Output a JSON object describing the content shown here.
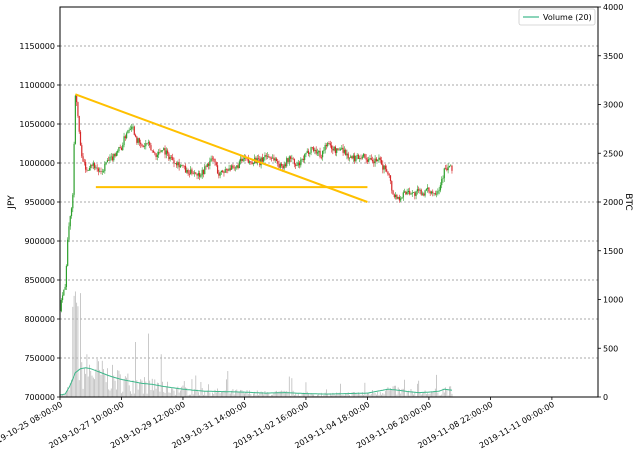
{
  "chart_data": {
    "type": "candlestick",
    "left_axis": {
      "label": "JPY",
      "range": [
        700000,
        1200000
      ],
      "ticks": [
        700000,
        750000,
        800000,
        850000,
        900000,
        950000,
        1000000,
        1050000,
        1100000,
        1150000
      ],
      "tick_labels": [
        "700000",
        "750000",
        "800000",
        "850000",
        "900000",
        "950000",
        "1000000",
        "1050000",
        "1100000",
        "1150000"
      ]
    },
    "right_axis": {
      "label": "BTC",
      "range": [
        0,
        4000
      ],
      "ticks": [
        0,
        500,
        1000,
        1500,
        2000,
        2500,
        3000,
        3500,
        4000
      ],
      "tick_labels": [
        "0",
        "500",
        "1000",
        "1500",
        "2000",
        "2500",
        "3000",
        "3500",
        "4000"
      ]
    },
    "x_axis": {
      "range_hours": [
        0,
        420
      ],
      "ticks_hours": [
        0,
        48,
        96,
        144,
        192,
        240,
        288,
        336,
        384
      ],
      "tick_labels": [
        "2019-10-25 08:00:00",
        "2019-10-27 10:00:00",
        "2019-10-29 12:00:00",
        "2019-10-31 14:00:00",
        "2019-11-02 16:00:00",
        "2019-11-04 18:00:00",
        "2019-11-06 20:00:00",
        "2019-11-08 22:00:00",
        "2019-11-11 00:00:00"
      ]
    },
    "legend": {
      "label": "Volume (20)",
      "position": "top-right",
      "color": "#3cb88a"
    },
    "grid": {
      "horizontal": true,
      "style": "dashed"
    },
    "colors": {
      "up": "#2ca02c",
      "down": "#d62728",
      "volume_bar": "#bbbbbb",
      "volume_ma": "#3cb88a",
      "trendline": "#ffc000"
    },
    "price_path": [
      [
        0,
        810000
      ],
      [
        2,
        830000
      ],
      [
        4,
        840000
      ],
      [
        6,
        900000
      ],
      [
        8,
        930000
      ],
      [
        10,
        960000
      ],
      [
        12,
        1090000
      ],
      [
        14,
        1060000
      ],
      [
        16,
        1020000
      ],
      [
        20,
        990000
      ],
      [
        24,
        1000000
      ],
      [
        28,
        995000
      ],
      [
        32,
        985000
      ],
      [
        36,
        1000000
      ],
      [
        40,
        1005000
      ],
      [
        44,
        1015000
      ],
      [
        48,
        1020000
      ],
      [
        52,
        1040000
      ],
      [
        56,
        1050000
      ],
      [
        60,
        1030000
      ],
      [
        64,
        1020000
      ],
      [
        68,
        1025000
      ],
      [
        72,
        1015000
      ],
      [
        76,
        1010000
      ],
      [
        80,
        1020000
      ],
      [
        84,
        1010000
      ],
      [
        88,
        1005000
      ],
      [
        92,
        1000000
      ],
      [
        96,
        995000
      ],
      [
        100,
        985000
      ],
      [
        104,
        990000
      ],
      [
        108,
        985000
      ],
      [
        112,
        990000
      ],
      [
        116,
        1000000
      ],
      [
        120,
        1005000
      ],
      [
        124,
        985000
      ],
      [
        128,
        990000
      ],
      [
        132,
        995000
      ],
      [
        136,
        990000
      ],
      [
        140,
        1000000
      ],
      [
        144,
        1005000
      ],
      [
        148,
        1000000
      ],
      [
        152,
        1005000
      ],
      [
        156,
        1000000
      ],
      [
        160,
        1010000
      ],
      [
        164,
        1008000
      ],
      [
        168,
        1005000
      ],
      [
        172,
        995000
      ],
      [
        176,
        1000000
      ],
      [
        180,
        1008000
      ],
      [
        184,
        995000
      ],
      [
        188,
        1000000
      ],
      [
        192,
        1010000
      ],
      [
        196,
        1020000
      ],
      [
        200,
        1015000
      ],
      [
        204,
        1010000
      ],
      [
        208,
        1025000
      ],
      [
        212,
        1020000
      ],
      [
        216,
        1015000
      ],
      [
        220,
        1020000
      ],
      [
        224,
        1010000
      ],
      [
        228,
        1005000
      ],
      [
        232,
        1008000
      ],
      [
        236,
        1010000
      ],
      [
        240,
        1005000
      ],
      [
        244,
        1000000
      ],
      [
        248,
        1005000
      ],
      [
        252,
        995000
      ],
      [
        256,
        990000
      ],
      [
        260,
        960000
      ],
      [
        264,
        955000
      ],
      [
        268,
        960000
      ],
      [
        272,
        965000
      ],
      [
        276,
        960000
      ],
      [
        280,
        963000
      ],
      [
        284,
        962000
      ],
      [
        288,
        965000
      ],
      [
        292,
        962000
      ],
      [
        296,
        968000
      ],
      [
        300,
        990000
      ],
      [
        304,
        995000
      ],
      [
        306,
        990000
      ]
    ],
    "volume_ma_path": [
      [
        0,
        20
      ],
      [
        4,
        30
      ],
      [
        8,
        120
      ],
      [
        12,
        250
      ],
      [
        16,
        290
      ],
      [
        20,
        300
      ],
      [
        24,
        290
      ],
      [
        28,
        270
      ],
      [
        32,
        250
      ],
      [
        36,
        230
      ],
      [
        40,
        210
      ],
      [
        48,
        180
      ],
      [
        56,
        160
      ],
      [
        64,
        140
      ],
      [
        72,
        130
      ],
      [
        80,
        110
      ],
      [
        96,
        80
      ],
      [
        112,
        60
      ],
      [
        128,
        55
      ],
      [
        144,
        50
      ],
      [
        160,
        40
      ],
      [
        176,
        45
      ],
      [
        192,
        35
      ],
      [
        208,
        30
      ],
      [
        224,
        35
      ],
      [
        240,
        40
      ],
      [
        248,
        60
      ],
      [
        256,
        80
      ],
      [
        264,
        70
      ],
      [
        272,
        55
      ],
      [
        280,
        45
      ],
      [
        288,
        50
      ],
      [
        296,
        60
      ],
      [
        300,
        80
      ],
      [
        306,
        70
      ]
    ],
    "trendlines": [
      {
        "from": [
          12,
          1088000
        ],
        "to": [
          240,
          950000
        ]
      },
      {
        "from": [
          28,
          969000
        ],
        "to": [
          240,
          969000
        ]
      }
    ]
  }
}
